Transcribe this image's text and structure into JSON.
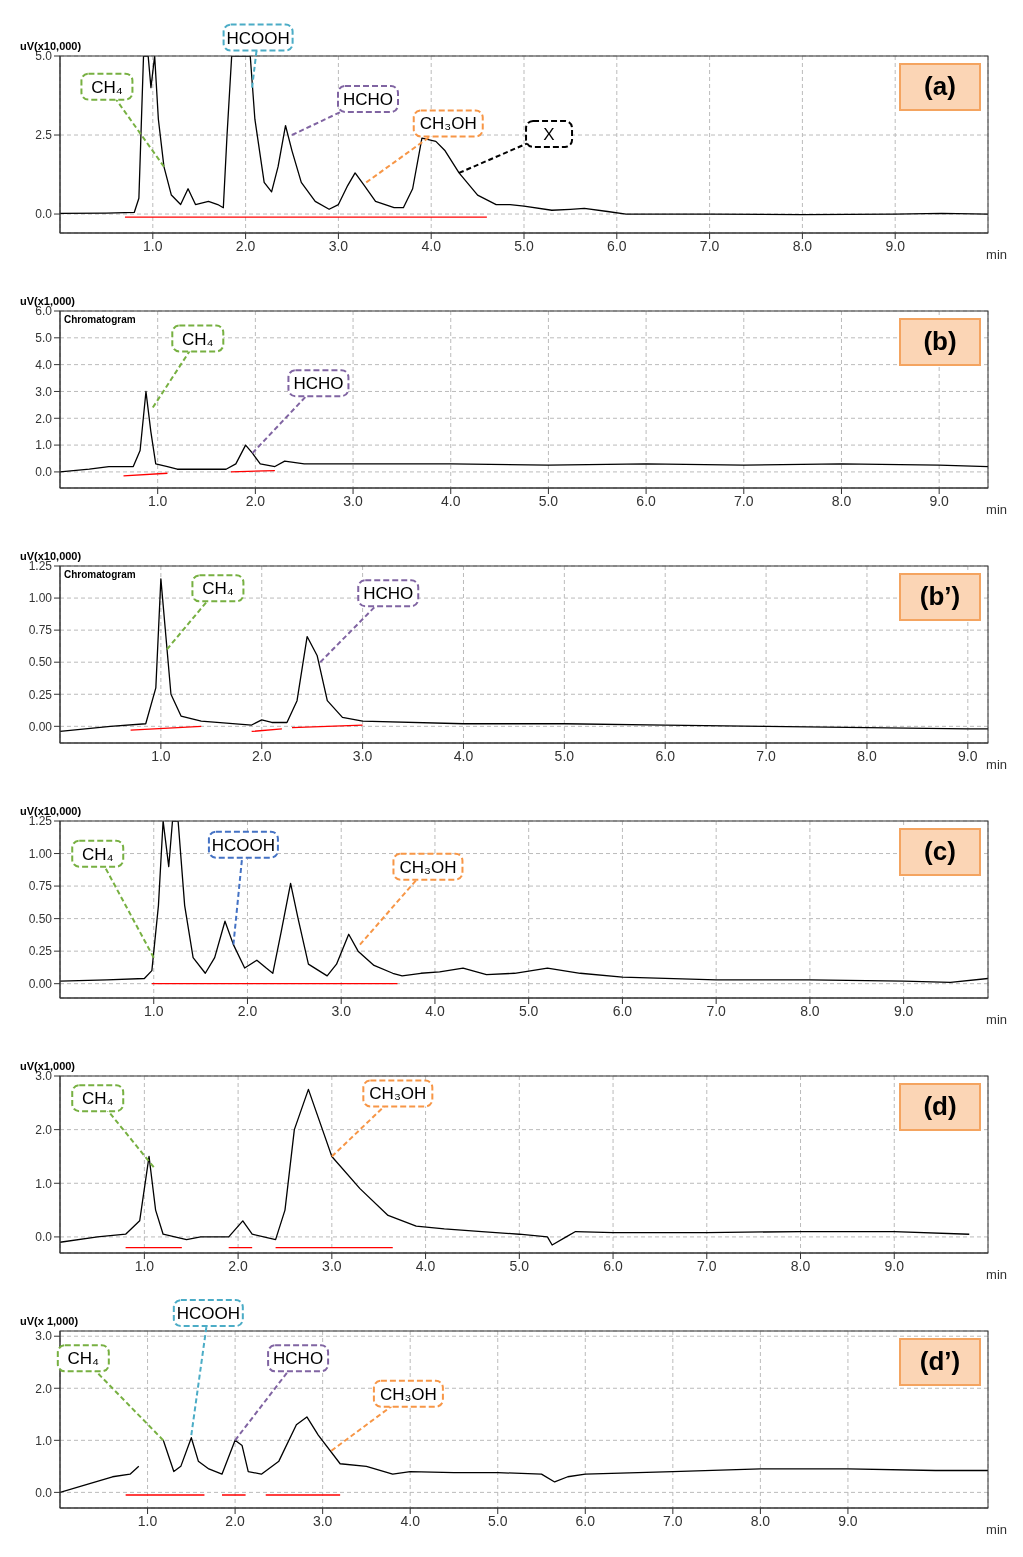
{
  "chart_data": [
    {
      "type": "line",
      "title": "(a)",
      "ylabel": "uV(x10,000)",
      "xlabel": "min",
      "grid": true,
      "xlim": [
        0,
        10
      ],
      "ylim": [
        -0.6,
        5.0
      ],
      "xticks": [
        {
          "value": 1,
          "label": "1.0"
        },
        {
          "value": 2,
          "label": "2.0"
        },
        {
          "value": 3,
          "label": "3.0"
        },
        {
          "value": 4,
          "label": "4.0"
        },
        {
          "value": 5,
          "label": "5.0"
        },
        {
          "value": 6,
          "label": "6.0"
        },
        {
          "value": 7,
          "label": "7.0"
        },
        {
          "value": 8,
          "label": "8.0"
        },
        {
          "value": 9,
          "label": "9.0"
        }
      ],
      "yticks": [
        {
          "value": 0,
          "label": "0.0"
        },
        {
          "value": 2.5,
          "label": "2.5"
        },
        {
          "value": 5,
          "label": "5.0"
        }
      ],
      "annotations": [
        {
          "text": "CH₄",
          "x": 1.12,
          "y": 1.5
        },
        {
          "text": "HCOOH",
          "x": 2.07,
          "y": 4.0
        },
        {
          "text": "HCHO",
          "x": 2.5,
          "y": 2.5
        },
        {
          "text": "CH₃OH",
          "x": 3.3,
          "y": 1.0
        },
        {
          "text": "X",
          "x": 4.3,
          "y": 1.3
        }
      ],
      "series": [
        {
          "color": "#000000",
          "x": [
            0,
            0.5,
            0.8,
            0.85,
            0.9,
            0.95,
            0.98,
            1.02,
            1.06,
            1.12,
            1.2,
            1.3,
            1.38,
            1.46,
            1.6,
            1.7,
            1.76,
            1.8,
            1.85,
            2.05,
            2.1,
            2.2,
            2.28,
            2.35,
            2.43,
            2.5,
            2.6,
            2.75,
            2.9,
            3.0,
            3.1,
            3.18,
            3.28,
            3.4,
            3.6,
            3.7,
            3.8,
            3.9,
            4.05,
            4.15,
            4.3,
            4.5,
            4.7,
            4.85,
            5.0,
            5.3,
            5.5,
            5.65,
            5.9,
            6.1,
            7,
            8,
            9,
            9.5,
            10
          ],
          "values": [
            0.02,
            0.03,
            0.05,
            0.5,
            5.0,
            5.0,
            4.0,
            5.0,
            3.0,
            1.5,
            0.6,
            0.3,
            0.8,
            0.3,
            0.4,
            0.3,
            0.2,
            2.5,
            5.0,
            5.0,
            3.0,
            1.0,
            0.7,
            1.5,
            2.8,
            2.0,
            1.0,
            0.4,
            0.15,
            0.3,
            0.9,
            1.3,
            0.9,
            0.4,
            0.2,
            0.2,
            0.8,
            2.4,
            2.3,
            2.0,
            1.3,
            0.6,
            0.3,
            0.3,
            0.25,
            0.12,
            0.15,
            0.18,
            0.08,
            0.0,
            0.0,
            -0.02,
            0.0,
            0.02,
            0.0
          ]
        },
        {
          "color": "#ff0000",
          "x": [
            0.7,
            4.6
          ],
          "values": [
            -0.1,
            -0.1
          ]
        }
      ]
    },
    {
      "type": "line",
      "title": "(b)",
      "subtitle": "Chromatogram",
      "ylabel": "uV(x1,000)",
      "xlabel": "min",
      "grid": true,
      "xlim": [
        0,
        9.5
      ],
      "ylim": [
        -0.6,
        6.0
      ],
      "xticks": [
        {
          "value": 1,
          "label": "1.0"
        },
        {
          "value": 2,
          "label": "2.0"
        },
        {
          "value": 3,
          "label": "3.0"
        },
        {
          "value": 4,
          "label": "4.0"
        },
        {
          "value": 5,
          "label": "5.0"
        },
        {
          "value": 6,
          "label": "6.0"
        },
        {
          "value": 7,
          "label": "7.0"
        },
        {
          "value": 8,
          "label": "8.0"
        },
        {
          "value": 9,
          "label": "9.0"
        }
      ],
      "yticks": [
        {
          "value": 0,
          "label": "0.0"
        },
        {
          "value": 1,
          "label": "1.0"
        },
        {
          "value": 2,
          "label": "2.0"
        },
        {
          "value": 3,
          "label": "3.0"
        },
        {
          "value": 4,
          "label": "4.0"
        },
        {
          "value": 5,
          "label": "5.0"
        },
        {
          "value": 6,
          "label": "6.0"
        }
      ],
      "annotations": [
        {
          "text": "CH₄",
          "x": 0.95,
          "y": 2.4
        },
        {
          "text": "HCHO",
          "x": 1.97,
          "y": 0.7
        }
      ],
      "series": [
        {
          "color": "#000000",
          "x": [
            0,
            0.3,
            0.5,
            0.75,
            0.82,
            0.88,
            0.93,
            0.98,
            1.1,
            1.2,
            1.7,
            1.8,
            1.9,
            1.97,
            2.05,
            2.2,
            2.3,
            2.5,
            3,
            4,
            5,
            6,
            7,
            8,
            9,
            9.5
          ],
          "values": [
            0.0,
            0.1,
            0.2,
            0.2,
            0.8,
            3.0,
            1.5,
            0.3,
            0.2,
            0.1,
            0.1,
            0.3,
            1.0,
            0.7,
            0.3,
            0.2,
            0.4,
            0.3,
            0.3,
            0.3,
            0.25,
            0.3,
            0.25,
            0.3,
            0.25,
            0.2
          ]
        },
        {
          "color": "#ff0000",
          "x": [
            0.65,
            1.1,
            1.4,
            1.75,
            2.2
          ],
          "values": [
            -0.15,
            -0.05,
            null,
            0.0,
            0.05
          ]
        }
      ]
    },
    {
      "type": "line",
      "title": "(b’)",
      "subtitle": "Chromatogram",
      "ylabel": "uV(x10,000)",
      "xlabel": "min",
      "grid": true,
      "xlim": [
        0,
        9.2
      ],
      "ylim": [
        -0.13,
        1.25
      ],
      "xticks": [
        {
          "value": 1,
          "label": "1.0"
        },
        {
          "value": 2,
          "label": "2.0"
        },
        {
          "value": 3,
          "label": "3.0"
        },
        {
          "value": 4,
          "label": "4.0"
        },
        {
          "value": 5,
          "label": "5.0"
        },
        {
          "value": 6,
          "label": "6.0"
        },
        {
          "value": 7,
          "label": "7.0"
        },
        {
          "value": 8,
          "label": "8.0"
        },
        {
          "value": 9,
          "label": "9.0"
        }
      ],
      "yticks": [
        {
          "value": 0,
          "label": "0.00"
        },
        {
          "value": 0.25,
          "label": "0.25"
        },
        {
          "value": 0.5,
          "label": "0.50"
        },
        {
          "value": 0.75,
          "label": "0.75"
        },
        {
          "value": 1,
          "label": "1.00"
        },
        {
          "value": 1.25,
          "label": "1.25"
        }
      ],
      "annotations": [
        {
          "text": "CH₄",
          "x": 1.06,
          "y": 0.6
        },
        {
          "text": "HCHO",
          "x": 2.58,
          "y": 0.5
        }
      ],
      "series": [
        {
          "color": "#000000",
          "x": [
            0,
            0.5,
            0.85,
            0.95,
            1.0,
            1.05,
            1.1,
            1.2,
            1.4,
            1.9,
            2.0,
            2.1,
            2.25,
            2.35,
            2.45,
            2.55,
            2.65,
            2.8,
            3,
            4,
            5,
            6,
            7,
            8,
            9,
            9.2
          ],
          "values": [
            -0.04,
            0.0,
            0.02,
            0.3,
            1.15,
            0.7,
            0.25,
            0.08,
            0.04,
            0.01,
            0.05,
            0.03,
            0.03,
            0.2,
            0.7,
            0.55,
            0.2,
            0.07,
            0.04,
            0.02,
            0.02,
            0.01,
            0.0,
            -0.01,
            -0.02,
            -0.02
          ]
        },
        {
          "color": "#ff0000",
          "x": [
            0.7,
            1.4,
            1.6,
            1.9,
            2.2,
            2.25,
            2.3,
            3.0
          ],
          "values": [
            -0.03,
            0.0,
            null,
            -0.04,
            -0.02,
            null,
            -0.01,
            0.01
          ]
        }
      ]
    },
    {
      "type": "line",
      "title": "(c)",
      "ylabel": "uV(x10,000)",
      "xlabel": "min",
      "grid": true,
      "xlim": [
        0,
        9.9
      ],
      "ylim": [
        -0.11,
        1.25
      ],
      "xticks": [
        {
          "value": 1,
          "label": "1.0"
        },
        {
          "value": 2,
          "label": "2.0"
        },
        {
          "value": 3,
          "label": "3.0"
        },
        {
          "value": 4,
          "label": "4.0"
        },
        {
          "value": 5,
          "label": "5.0"
        },
        {
          "value": 6,
          "label": "6.0"
        },
        {
          "value": 7,
          "label": "7.0"
        },
        {
          "value": 8,
          "label": "8.0"
        },
        {
          "value": 9,
          "label": "9.0"
        }
      ],
      "yticks": [
        {
          "value": 0,
          "label": "0.00"
        },
        {
          "value": 0.25,
          "label": "0.25"
        },
        {
          "value": 0.5,
          "label": "0.50"
        },
        {
          "value": 0.75,
          "label": "0.75"
        },
        {
          "value": 1,
          "label": "1.00"
        },
        {
          "value": 1.25,
          "label": "1.25"
        }
      ],
      "annotations": [
        {
          "text": "CH₄",
          "x": 1.0,
          "y": 0.2
        },
        {
          "text": "HCOOH",
          "x": 1.85,
          "y": 0.3
        },
        {
          "text": "CH₃OH",
          "x": 3.2,
          "y": 0.3
        }
      ],
      "series": [
        {
          "color": "#000000",
          "x": [
            0,
            0.5,
            0.9,
            0.98,
            1.05,
            1.1,
            1.16,
            1.2,
            1.26,
            1.33,
            1.42,
            1.55,
            1.65,
            1.76,
            1.85,
            1.97,
            2.1,
            2.2,
            2.27,
            2.36,
            2.46,
            2.54,
            2.65,
            2.85,
            2.95,
            3.08,
            3.18,
            3.35,
            3.55,
            3.65,
            3.85,
            4.05,
            4.3,
            4.55,
            4.85,
            5.2,
            5.55,
            6,
            7,
            8,
            9,
            9.5,
            9.9
          ],
          "values": [
            0.02,
            0.03,
            0.04,
            0.1,
            0.6,
            1.25,
            0.9,
            1.25,
            1.25,
            0.6,
            0.2,
            0.08,
            0.2,
            0.48,
            0.3,
            0.12,
            0.18,
            0.12,
            0.08,
            0.4,
            0.77,
            0.5,
            0.15,
            0.06,
            0.15,
            0.38,
            0.25,
            0.14,
            0.08,
            0.06,
            0.08,
            0.09,
            0.12,
            0.07,
            0.08,
            0.12,
            0.08,
            0.05,
            0.03,
            0.03,
            0.02,
            0.01,
            0.04
          ]
        },
        {
          "color": "#ff0000",
          "x": [
            0.98,
            3.6
          ],
          "values": [
            0.0,
            0.0
          ]
        }
      ]
    },
    {
      "type": "line",
      "title": "(d)",
      "ylabel": "uV(x1,000)",
      "xlabel": "min",
      "grid": true,
      "xlim": [
        0.1,
        10
      ],
      "ylim": [
        -0.3,
        3.0
      ],
      "xticks": [
        {
          "value": 1,
          "label": "1.0"
        },
        {
          "value": 2,
          "label": "2.0"
        },
        {
          "value": 3,
          "label": "3.0"
        },
        {
          "value": 4,
          "label": "4.0"
        },
        {
          "value": 5,
          "label": "5.0"
        },
        {
          "value": 6,
          "label": "6.0"
        },
        {
          "value": 7,
          "label": "7.0"
        },
        {
          "value": 8,
          "label": "8.0"
        },
        {
          "value": 9,
          "label": "9.0"
        }
      ],
      "yticks": [
        {
          "value": 0,
          "label": "0.0"
        },
        {
          "value": 1,
          "label": "1.0"
        },
        {
          "value": 2,
          "label": "2.0"
        },
        {
          "value": 3,
          "label": "3.0"
        }
      ],
      "annotations": [
        {
          "text": "CH₄",
          "x": 1.1,
          "y": 1.3
        },
        {
          "text": "CH₃OH",
          "x": 3.0,
          "y": 1.5
        }
      ],
      "series": [
        {
          "color": "#000000",
          "x": [
            0.1,
            0.5,
            0.8,
            0.95,
            1.05,
            1.12,
            1.2,
            1.45,
            1.6,
            1.9,
            2.05,
            2.15,
            2.4,
            2.5,
            2.6,
            2.75,
            2.9,
            3.0,
            3.3,
            3.6,
            3.9,
            4.2,
            4.6,
            5.0,
            5.3,
            5.35,
            5.5,
            5.6,
            6,
            7,
            8,
            9,
            9.8
          ],
          "values": [
            -0.1,
            0.0,
            0.05,
            0.3,
            1.5,
            0.5,
            0.05,
            -0.05,
            0.0,
            0.0,
            0.3,
            0.05,
            -0.05,
            0.5,
            2.0,
            2.75,
            2.0,
            1.5,
            0.9,
            0.4,
            0.2,
            0.15,
            0.1,
            0.05,
            0.0,
            -0.15,
            0.0,
            0.1,
            0.08,
            0.08,
            0.1,
            0.1,
            0.05
          ]
        },
        {
          "color": "#ff0000",
          "x": [
            0.8,
            1.4,
            1.6,
            1.9,
            2.15,
            2.3,
            2.4,
            3.65
          ],
          "values": [
            -0.2,
            -0.2,
            null,
            -0.2,
            -0.2,
            null,
            -0.2,
            -0.2
          ]
        }
      ]
    },
    {
      "type": "line",
      "title": "(d’)",
      "ylabel": "uV(x 1,000)",
      "xlabel": "min",
      "grid": true,
      "xlim": [
        0,
        10.6
      ],
      "ylim": [
        -0.3,
        3.1
      ],
      "xticks": [
        {
          "value": 1,
          "label": "1.0"
        },
        {
          "value": 2,
          "label": "2.0"
        },
        {
          "value": 3,
          "label": "3.0"
        },
        {
          "value": 4,
          "label": "4.0"
        },
        {
          "value": 5,
          "label": "5.0"
        },
        {
          "value": 6,
          "label": "6.0"
        },
        {
          "value": 7,
          "label": "7.0"
        },
        {
          "value": 8,
          "label": "8.0"
        },
        {
          "value": 9,
          "label": "9.0"
        }
      ],
      "yticks": [
        {
          "value": 0,
          "label": "0.0"
        },
        {
          "value": 1,
          "label": "1.0"
        },
        {
          "value": 2,
          "label": "2.0"
        },
        {
          "value": 3,
          "label": "3.0"
        }
      ],
      "annotations": [
        {
          "text": "CH₄",
          "x": 1.18,
          "y": 1.0
        },
        {
          "text": "HCOOH",
          "x": 1.5,
          "y": 1.1
        },
        {
          "text": "HCHO",
          "x": 2.0,
          "y": 1.0
        },
        {
          "text": "CH₃OH",
          "x": 3.1,
          "y": 0.8
        }
      ],
      "series": [
        {
          "color": "#000000",
          "x": [
            0,
            0.3,
            0.6,
            0.8,
            0.9,
            1.05,
            1.18,
            1.3,
            1.38,
            1.5,
            1.58,
            1.7,
            1.85,
            2.0,
            2.08,
            2.15,
            2.3,
            2.5,
            2.7,
            2.82,
            2.95,
            3.2,
            3.5,
            3.8,
            4.0,
            4.5,
            5,
            5.5,
            5.65,
            5.8,
            6,
            7,
            8,
            9,
            10,
            10.6
          ],
          "values": [
            0.0,
            0.15,
            0.3,
            0.35,
            0.5,
            null,
            1.0,
            0.4,
            0.5,
            1.05,
            0.6,
            0.45,
            0.35,
            1.0,
            0.9,
            0.4,
            0.35,
            0.6,
            1.3,
            1.45,
            1.1,
            0.55,
            0.5,
            0.35,
            0.4,
            0.38,
            0.38,
            0.35,
            0.2,
            0.3,
            0.35,
            0.4,
            0.45,
            0.45,
            0.42,
            0.42
          ]
        },
        {
          "color": "#ff0000",
          "x": [
            0.75,
            1.65,
            1.75,
            1.85,
            2.12,
            2.2,
            2.35,
            3.2
          ],
          "values": [
            -0.05,
            -0.05,
            null,
            -0.05,
            -0.05,
            null,
            -0.05,
            -0.05
          ]
        }
      ]
    }
  ]
}
